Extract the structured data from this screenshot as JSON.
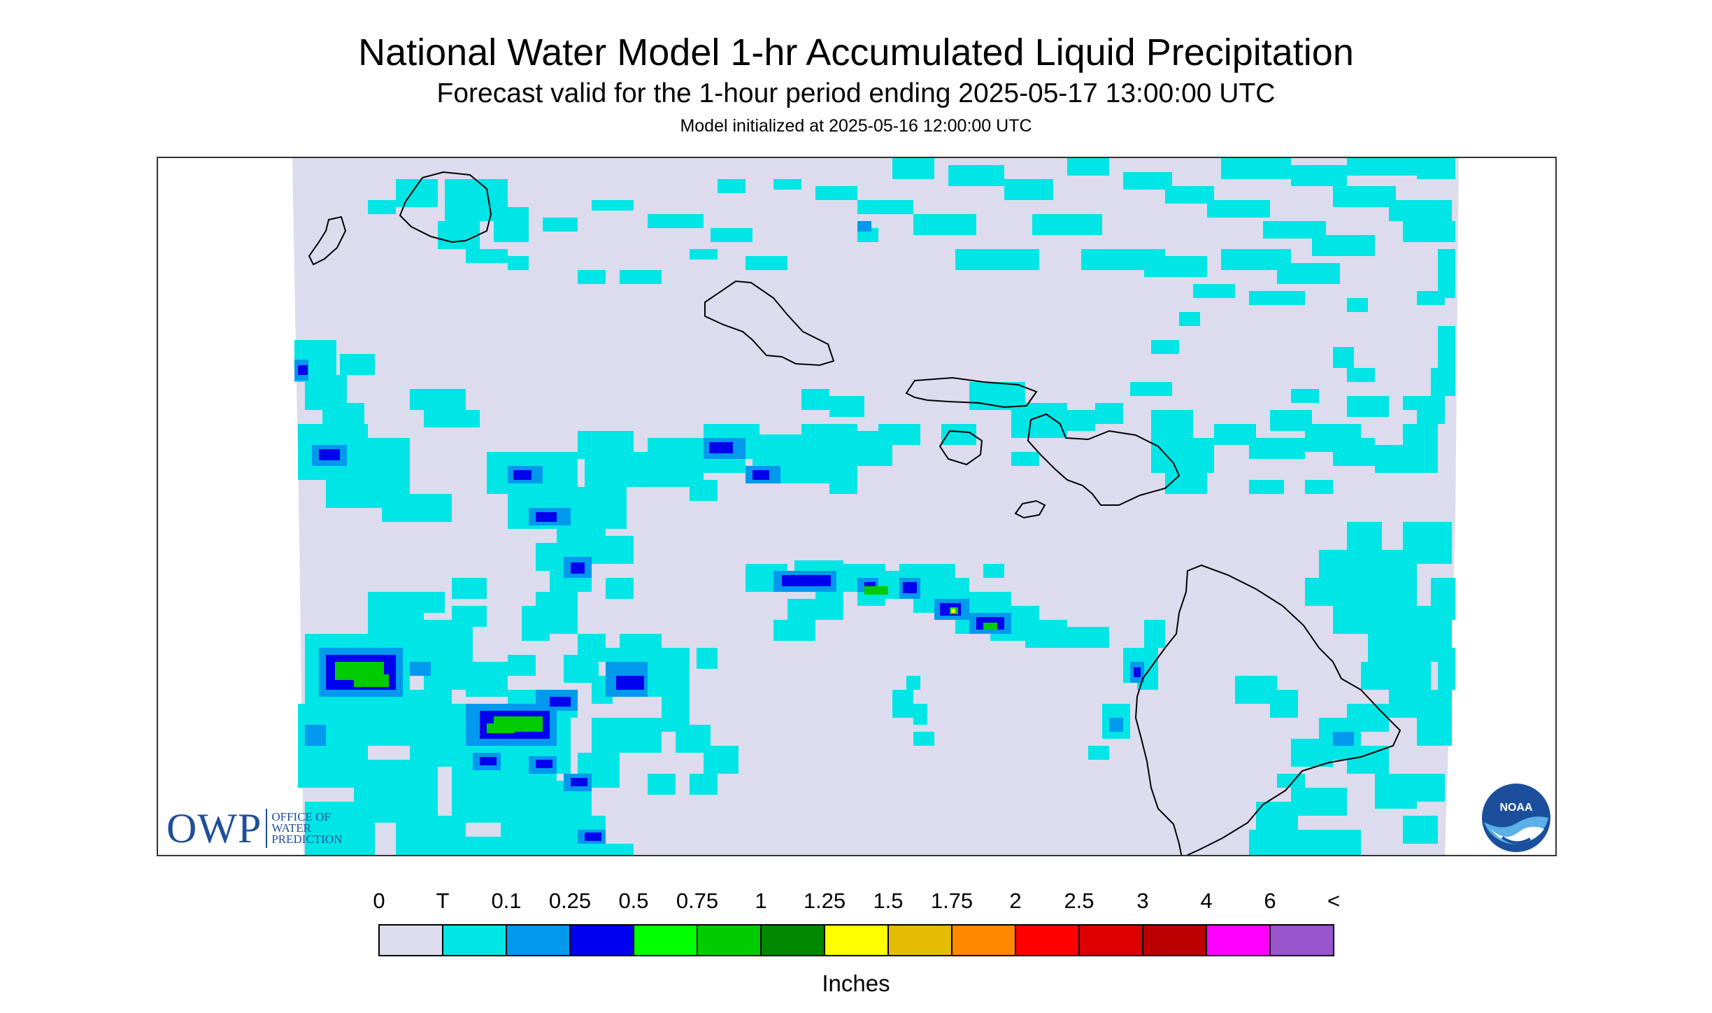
{
  "header": {
    "title": "National Water Model 1-hr Accumulated Liquid Precipitation",
    "subtitle": "Forecast valid for the 1-hour period ending 2025-05-17 13:00:00 UTC",
    "init_line": "Model initialized at 2025-05-16 12:00:00 UTC"
  },
  "map": {
    "background_color": "#dcdcee",
    "coastline_color": "#000000",
    "islands": [
      "Niihau",
      "Kauai",
      "Oahu",
      "Molokai",
      "Lanai",
      "Maui",
      "Kahoolawe",
      "Hawaii"
    ]
  },
  "logos": {
    "owp_letters": "OWP",
    "owp_line1": "OFFICE OF",
    "owp_line2": "WATER",
    "owp_line3": "PREDICTION",
    "noaa_text": "NOAA"
  },
  "legend": {
    "ticks": [
      "0",
      "T",
      "0.1",
      "0.25",
      "0.5",
      "0.75",
      "1",
      "1.25",
      "1.5",
      "1.75",
      "2",
      "2.5",
      "3",
      "4",
      "6",
      "<"
    ],
    "colors": [
      "#dcdcee",
      "#00e5e5",
      "#0099ee",
      "#0000ee",
      "#00ff00",
      "#00cc00",
      "#008800",
      "#ffff00",
      "#e5bb00",
      "#ff8800",
      "#ff0000",
      "#dd0000",
      "#bb0000",
      "#ff00ff",
      "#9955cc"
    ],
    "unit_label": "Inches"
  }
}
